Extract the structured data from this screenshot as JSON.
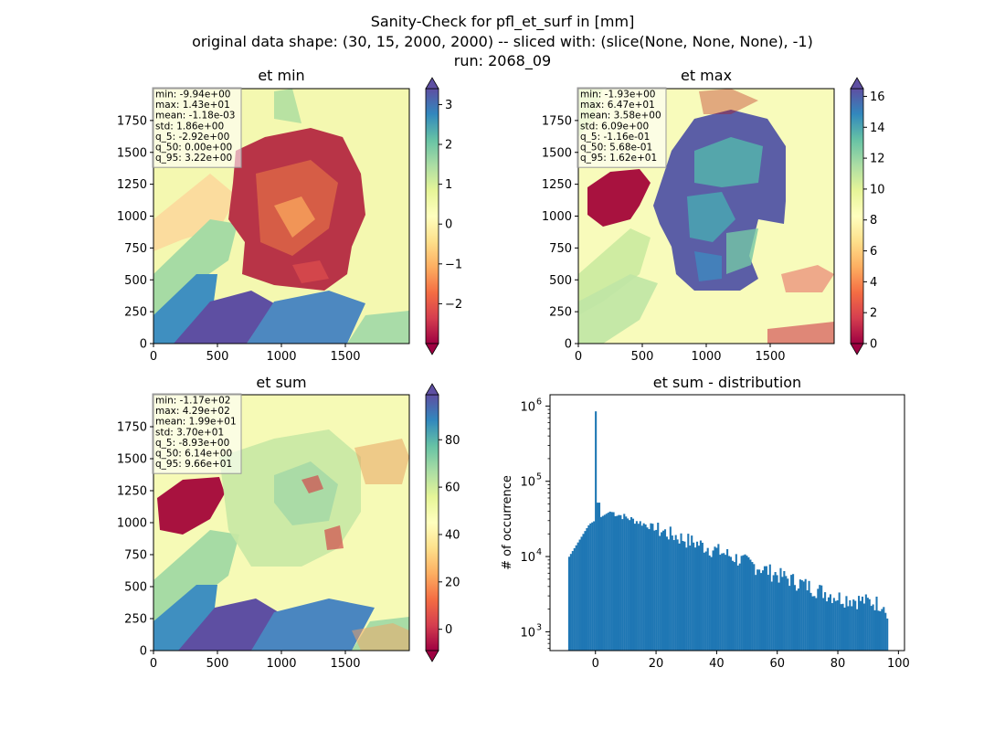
{
  "figure": {
    "title_lines": [
      "Sanity-Check for pfl_et_surf in [mm]",
      "original data shape: (30, 15, 2000, 2000) -- sliced with: (slice(None, None, None), -1)",
      "run: 2068_09"
    ]
  },
  "colormap": {
    "name": "Spectral",
    "stops": [
      "#9e0142",
      "#d53e4f",
      "#f46d43",
      "#fdae61",
      "#fee08b",
      "#ffffbf",
      "#e6f598",
      "#abdda4",
      "#66c2a5",
      "#3288bd",
      "#5e4fa2"
    ]
  },
  "chart_data": [
    {
      "type": "heatmap",
      "title": "et min",
      "xlim": [
        0,
        2000
      ],
      "ylim": [
        0,
        2000
      ],
      "xticks": [
        "0",
        "500",
        "1000",
        "1500"
      ],
      "yticks": [
        "0",
        "250",
        "500",
        "750",
        "1000",
        "1250",
        "1500",
        "1750"
      ],
      "color_range": [
        -3,
        3.4
      ],
      "colorbar_ticks": [
        "−2",
        "−1",
        "0",
        "1",
        "2",
        "3"
      ],
      "colorbar_tick_values": [
        -2,
        -1,
        0,
        1,
        2,
        3
      ],
      "stats": [
        "min: -9.94e+00",
        "max: 1.43e+01",
        "mean: -1.18e-03",
        "std: 1.86e+00",
        "q_5: -2.92e+00",
        "q_50: 0.00e+00",
        "q_95: 3.22e+00"
      ]
    },
    {
      "type": "heatmap",
      "title": "et max",
      "xlim": [
        0,
        2000
      ],
      "ylim": [
        0,
        2000
      ],
      "xticks": [
        "0",
        "500",
        "1000",
        "1500"
      ],
      "yticks": [
        "0",
        "250",
        "500",
        "750",
        "1000",
        "1250",
        "1500",
        "1750"
      ],
      "color_range": [
        0,
        16.5
      ],
      "colorbar_ticks": [
        "0",
        "2",
        "4",
        "6",
        "8",
        "10",
        "12",
        "14",
        "16"
      ],
      "colorbar_tick_values": [
        0,
        2,
        4,
        6,
        8,
        10,
        12,
        14,
        16
      ],
      "stats": [
        "min: -1.93e+00",
        "max: 6.47e+01",
        "mean: 3.58e+00",
        "std: 6.09e+00",
        "q_5: -1.16e-01",
        "q_50: 5.68e-01",
        "q_95: 1.62e+01"
      ]
    },
    {
      "type": "heatmap",
      "title": "et sum",
      "xlim": [
        0,
        2000
      ],
      "ylim": [
        0,
        2000
      ],
      "xticks": [
        "0",
        "500",
        "1000",
        "1500"
      ],
      "yticks": [
        "0",
        "250",
        "500",
        "750",
        "1000",
        "1250",
        "1500",
        "1750"
      ],
      "color_range": [
        -9,
        99
      ],
      "colorbar_ticks": [
        "0",
        "20",
        "40",
        "60",
        "80"
      ],
      "colorbar_tick_values": [
        0,
        20,
        40,
        60,
        80
      ],
      "stats": [
        "min: -1.17e+02",
        "max: 4.29e+02",
        "mean: 1.99e+01",
        "std: 3.70e+01",
        "q_5: -8.93e+00",
        "q_50: 6.14e+00",
        "q_95: 9.66e+01"
      ]
    },
    {
      "type": "bar",
      "title": "et sum - distribution",
      "ylabel": "# of occurrence",
      "xlim": [
        -15,
        102
      ],
      "ylim_log10": [
        2.75,
        6.15
      ],
      "xticks": [
        0,
        20,
        40,
        60,
        80,
        100
      ],
      "yticks": [
        {
          "base": "10",
          "exp": "3",
          "value": 1000
        },
        {
          "base": "10",
          "exp": "4",
          "value": 10000
        },
        {
          "base": "10",
          "exp": "5",
          "value": 100000
        },
        {
          "base": "10",
          "exp": "6",
          "value": 1000000
        }
      ],
      "bin_range": [
        -9,
        96.6
      ],
      "bin_count": 180,
      "color": "#1f77b4",
      "notable_values": {
        "peak_at_0": 850000,
        "first_bin": 9500,
        "near_5": 40000,
        "near_20": 24000,
        "near_40": 12500,
        "near_60": 6000,
        "near_80": 3000,
        "last_bin": 1500
      }
    }
  ]
}
